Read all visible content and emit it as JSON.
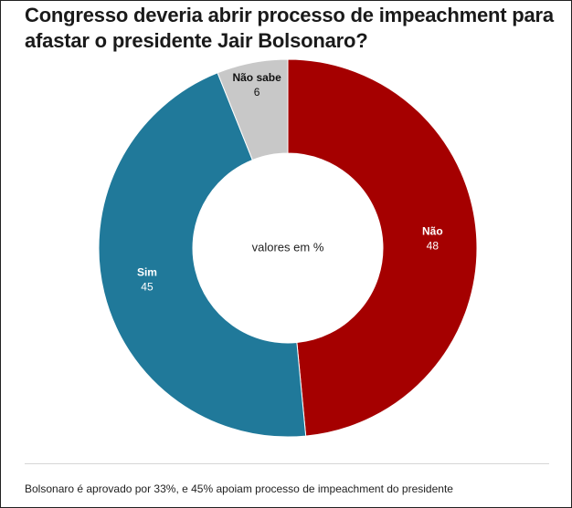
{
  "chart_data": {
    "type": "pie",
    "subtype": "donut",
    "title": "Congresso deveria abrir processo de impeachment para afastar o presidente Jair Bolsonaro?",
    "center_label": "valores em %",
    "slices": [
      {
        "label": "Não",
        "value": 48,
        "color": "#a50000",
        "text_color": "#ffffff"
      },
      {
        "label": "Sim",
        "value": 45,
        "color": "#20799a",
        "text_color": "#ffffff"
      },
      {
        "label": "Não sabe",
        "value": 6,
        "color": "#c8c8c8",
        "text_color": "#111111"
      }
    ],
    "start_angle_deg": 0,
    "direction": "clockwise"
  },
  "footer": {
    "note": "Bolsonaro é aprovado por 33%, e 45% apoiam processo de impeachment do presidente"
  }
}
